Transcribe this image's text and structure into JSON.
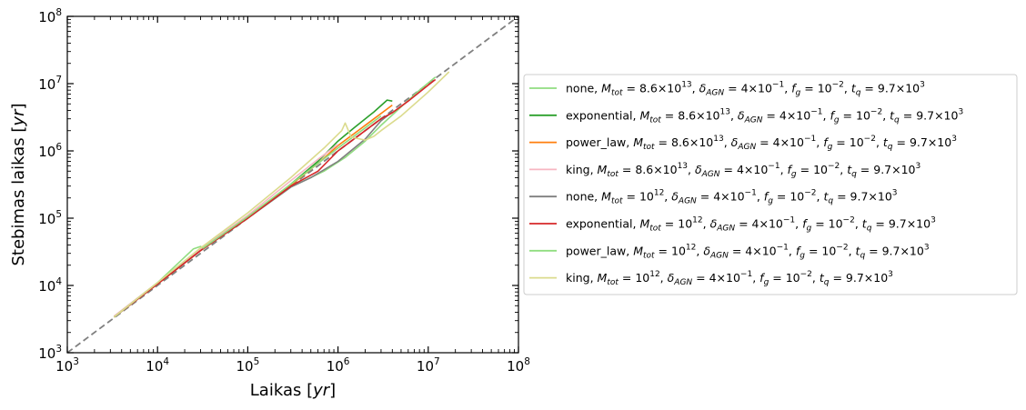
{
  "chart_data": {
    "type": "line",
    "xlabel": "Laikas [yr]",
    "ylabel": "Stebimas laikas [yr]",
    "xscale": "log",
    "yscale": "log",
    "xlim": [
      1000,
      100000000
    ],
    "ylim": [
      1000,
      100000000
    ],
    "x_ticks": [
      {
        "value": 1000,
        "base": "10",
        "exp": "3"
      },
      {
        "value": 10000,
        "base": "10",
        "exp": "4"
      },
      {
        "value": 100000,
        "base": "10",
        "exp": "5"
      },
      {
        "value": 1000000,
        "base": "10",
        "exp": "6"
      },
      {
        "value": 10000000,
        "base": "10",
        "exp": "7"
      },
      {
        "value": 100000000,
        "base": "10",
        "exp": "8"
      }
    ],
    "y_ticks": [
      {
        "value": 1000,
        "base": "10",
        "exp": "3"
      },
      {
        "value": 10000,
        "base": "10",
        "exp": "4"
      },
      {
        "value": 100000,
        "base": "10",
        "exp": "5"
      },
      {
        "value": 1000000,
        "base": "10",
        "exp": "6"
      },
      {
        "value": 10000000,
        "base": "10",
        "exp": "7"
      },
      {
        "value": 100000000,
        "base": "10",
        "exp": "8"
      }
    ],
    "grid": false,
    "legend_position": "outside-right",
    "reference_line": {
      "style": "dashed",
      "color": "#808080",
      "x": [
        1000,
        100000000
      ],
      "y": [
        1000,
        100000000
      ]
    },
    "series": [
      {
        "name": "none, M_tot = 8.6×10^13, δ_AGN = 4×10^-1, f_g = 10^-2, t_q = 9.7×10^3",
        "profile": "none",
        "mtot": "8.6×10",
        "mtot_exp": "13",
        "color": "#90dd80",
        "x": [
          3300,
          10000,
          30000,
          100000,
          300000,
          700000,
          1200000,
          2000000,
          3000000,
          5000000,
          8000000,
          12000000
        ],
        "y": [
          3400,
          10500,
          33000,
          100000,
          290000,
          500000,
          800000,
          1400000,
          2400000,
          4500000,
          8000000,
          12500000
        ]
      },
      {
        "name": "exponential, M_tot = 8.6×10^13, δ_AGN = 4×10^-1, f_g = 10^-2, t_q = 9.7×10^3",
        "profile": "exponential",
        "mtot": "8.6×10",
        "mtot_exp": "13",
        "color": "#2ca02c",
        "x": [
          3300,
          10000,
          30000,
          100000,
          300000,
          600000,
          1000000,
          1500000,
          2500000,
          3500000,
          4000000
        ],
        "y": [
          3400,
          10500,
          33000,
          100000,
          320000,
          700000,
          1400000,
          2200000,
          3800000,
          5700000,
          5500000
        ]
      },
      {
        "name": "power_law, M_tot = 8.6×10^13, δ_AGN = 4×10^-1, f_g = 10^-2, t_q = 9.7×10^3",
        "profile": "power_law",
        "mtot": "8.6×10",
        "mtot_exp": "13",
        "color": "#ff7f0e",
        "x": [
          3300,
          10000,
          30000,
          100000,
          300000,
          600000,
          1000000,
          1500000,
          2500000,
          4000000
        ],
        "y": [
          3400,
          10500,
          33000,
          100000,
          310000,
          650000,
          1200000,
          1800000,
          3000000,
          4800000
        ]
      },
      {
        "name": "king, M_tot = 8.6×10^13, δ_AGN = 4×10^-1, f_g = 10^-2, t_q = 9.7×10^3",
        "profile": "king",
        "mtot": "8.6×10",
        "mtot_exp": "13",
        "color": "#f7b6c2",
        "x": [
          3300,
          10000,
          30000,
          100000,
          300000,
          600000,
          1000000
        ],
        "y": [
          3500,
          11000,
          35000,
          110000,
          360000,
          750000,
          1250000
        ]
      },
      {
        "name": "none, M_tot = 10^12, δ_AGN = 4×10^-1, f_g = 10^-2, t_q = 9.7×10^3",
        "profile": "none",
        "mtot": "10",
        "mtot_exp": "12",
        "color": "#7f7f7f",
        "x": [
          3300,
          10000,
          30000,
          100000,
          300000,
          500000,
          1000000,
          2000000,
          3000000,
          4000000
        ],
        "y": [
          3400,
          10500,
          33000,
          100000,
          290000,
          400000,
          700000,
          1500000,
          2800000,
          3800000
        ]
      },
      {
        "name": "exponential, M_tot = 10^12, δ_AGN = 4×10^-1, f_g = 10^-2, t_q = 9.7×10^3",
        "profile": "exponential",
        "mtot": "10",
        "mtot_exp": "12",
        "color": "#d62728",
        "x": [
          3300,
          10000,
          30000,
          100000,
          300000,
          600000,
          1000000,
          2000000,
          3000000,
          4000000,
          6000000,
          10000000,
          12000000
        ],
        "y": [
          3400,
          10500,
          33000,
          100000,
          300000,
          500000,
          1000000,
          2000000,
          3000000,
          3700000,
          5500000,
          9500000,
          11500000
        ]
      },
      {
        "name": "power_law, M_tot = 10^12, δ_AGN = 4×10^-1, f_g = 10^-2, t_q = 9.7×10^3",
        "profile": "power_law",
        "mtot": "10",
        "mtot_exp": "12",
        "color": "#90dd80",
        "x": [
          3300,
          10000,
          25000,
          30000,
          32000,
          100000,
          300000,
          600000,
          1000000,
          2000000,
          3000000
        ],
        "y": [
          3400,
          11000,
          35000,
          38000,
          36000,
          105000,
          320000,
          650000,
          1100000,
          2200000,
          3300000
        ]
      },
      {
        "name": "king, M_tot = 10^12, δ_AGN = 4×10^-1, f_g = 10^-2, t_q = 9.7×10^3",
        "profile": "king",
        "mtot": "10",
        "mtot_exp": "12",
        "color": "#dbdb8d",
        "x": [
          3300,
          10000,
          30000,
          100000,
          300000,
          700000,
          1100000,
          1200000,
          1400000,
          2000000,
          2500000,
          3000000,
          5000000,
          10000000,
          17000000
        ],
        "y": [
          3400,
          11000,
          36000,
          120000,
          400000,
          1100000,
          2000000,
          2600000,
          1600000,
          1450000,
          1650000,
          2000000,
          3300000,
          7500000,
          15000000
        ]
      }
    ],
    "legend_common": {
      "d_agn": "4×10",
      "d_agn_exp": "−1",
      "fg": "10",
      "fg_exp": "−2",
      "tq": "9.7×10",
      "tq_exp": "3"
    }
  }
}
